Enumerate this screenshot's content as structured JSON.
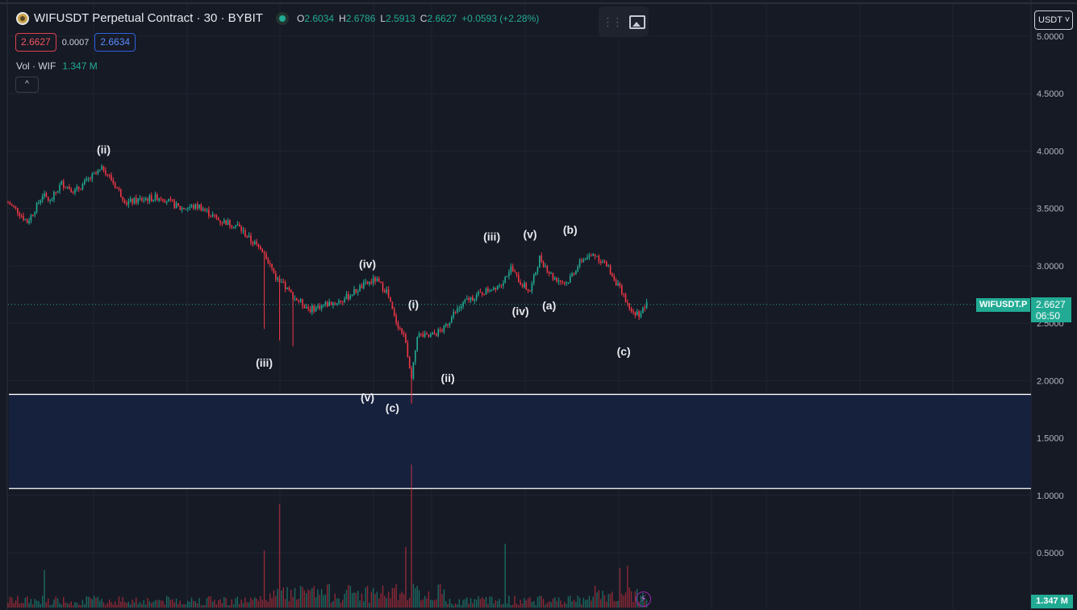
{
  "header": {
    "title": "WIFUSDT Perpetual Contract · 30 · BYBIT",
    "ohlc": {
      "o_key": "O",
      "o": "2.6034",
      "h_key": "H",
      "h": "2.6786",
      "l_key": "L",
      "l": "2.5913",
      "c_key": "C",
      "c": "2.6627",
      "change": "+0.0593 (+2.28%)"
    },
    "sell_price": "2.6627",
    "spread": "0.0007",
    "buy_price": "2.6634",
    "volume_label": "Vol · WIF",
    "volume_value": "1.347 M",
    "collapse_icon": "^"
  },
  "toolbar": {
    "grip": "⋮⋮",
    "image_icon": "image-icon"
  },
  "currency_selector": "USDT ˅",
  "price_scale": {
    "ticks": [
      "5.0000",
      "4.5000",
      "4.0000",
      "3.5000",
      "3.0000",
      "2.5000",
      "2.0000",
      "1.5000",
      "1.0000",
      "0.5000"
    ]
  },
  "symbol_label": "WIFUSDT.P",
  "last_price": "2.6627",
  "countdown": "06:50",
  "volume_scale_label": "1.347 M",
  "bolt_icon": "⚡",
  "colors": {
    "up": "#22ab94",
    "down": "#f23645",
    "zone": "#16213d",
    "background": "#161a25"
  },
  "chart_data": {
    "type": "candlestick",
    "x_unit": "30-minute bars",
    "ylim": [
      0.0,
      5.1
    ],
    "grid": true,
    "last_price": 2.6627,
    "price_path": [
      [
        0,
        3.55
      ],
      [
        5,
        3.48
      ],
      [
        10,
        3.38
      ],
      [
        15,
        3.52
      ],
      [
        18,
        3.62
      ],
      [
        22,
        3.56
      ],
      [
        28,
        3.72
      ],
      [
        35,
        3.65
      ],
      [
        42,
        3.75
      ],
      [
        50,
        3.85
      ],
      [
        56,
        3.7
      ],
      [
        62,
        3.55
      ],
      [
        70,
        3.58
      ],
      [
        80,
        3.6
      ],
      [
        90,
        3.5
      ],
      [
        100,
        3.52
      ],
      [
        110,
        3.4
      ],
      [
        120,
        3.35
      ],
      [
        127,
        3.22
      ],
      [
        134,
        3.12
      ],
      [
        140,
        2.9
      ],
      [
        150,
        2.72
      ],
      [
        158,
        2.62
      ],
      [
        165,
        2.66
      ],
      [
        175,
        2.7
      ],
      [
        185,
        2.82
      ],
      [
        192,
        2.88
      ],
      [
        198,
        2.78
      ],
      [
        202,
        2.55
      ],
      [
        208,
        2.35
      ],
      [
        211,
        2.0
      ],
      [
        214,
        2.4
      ],
      [
        220,
        2.38
      ],
      [
        228,
        2.45
      ],
      [
        233,
        2.58
      ],
      [
        240,
        2.7
      ],
      [
        250,
        2.78
      ],
      [
        258,
        2.85
      ],
      [
        263,
        2.98
      ],
      [
        268,
        2.85
      ],
      [
        273,
        2.78
      ],
      [
        278,
        3.07
      ],
      [
        285,
        2.9
      ],
      [
        292,
        2.85
      ],
      [
        300,
        3.05
      ],
      [
        307,
        3.1
      ],
      [
        314,
        2.98
      ],
      [
        320,
        2.8
      ],
      [
        326,
        2.6
      ],
      [
        330,
        2.58
      ],
      [
        334,
        2.66
      ]
    ],
    "zone": {
      "y_top": 1.88,
      "y_bottom": 1.06
    },
    "annotations": [
      {
        "label": "(ii)",
        "x": 50,
        "y": 3.98
      },
      {
        "label": "(iii)",
        "x": 134,
        "y": 2.12
      },
      {
        "label": "(iv)",
        "x": 188,
        "y": 2.98
      },
      {
        "label": "(v)",
        "x": 188,
        "y": 1.82
      },
      {
        "label": "(c)",
        "x": 201,
        "y": 1.73
      },
      {
        "label": "(i)",
        "x": 212,
        "y": 2.63
      },
      {
        "label": "(ii)",
        "x": 230,
        "y": 1.99
      },
      {
        "label": "(iii)",
        "x": 253,
        "y": 3.22
      },
      {
        "label": "(v)",
        "x": 273,
        "y": 3.24
      },
      {
        "label": "(iv)",
        "x": 268,
        "y": 2.57
      },
      {
        "label": "(a)",
        "x": 283,
        "y": 2.62
      },
      {
        "label": "(b)",
        "x": 294,
        "y": 3.28
      },
      {
        "label": "(c)",
        "x": 322,
        "y": 2.22
      }
    ],
    "volume_ylim": [
      0,
      1.347
    ],
    "volume_spikes": [
      {
        "x": 134,
        "v": 0.52
      },
      {
        "x": 142,
        "v": 0.94
      },
      {
        "x": 211,
        "v": 1.3
      },
      {
        "x": 208,
        "v": 0.55
      },
      {
        "x": 260,
        "v": 0.58
      },
      {
        "x": 19,
        "v": 0.34
      },
      {
        "x": 320,
        "v": 0.36
      },
      {
        "x": 324,
        "v": 0.38
      }
    ]
  }
}
